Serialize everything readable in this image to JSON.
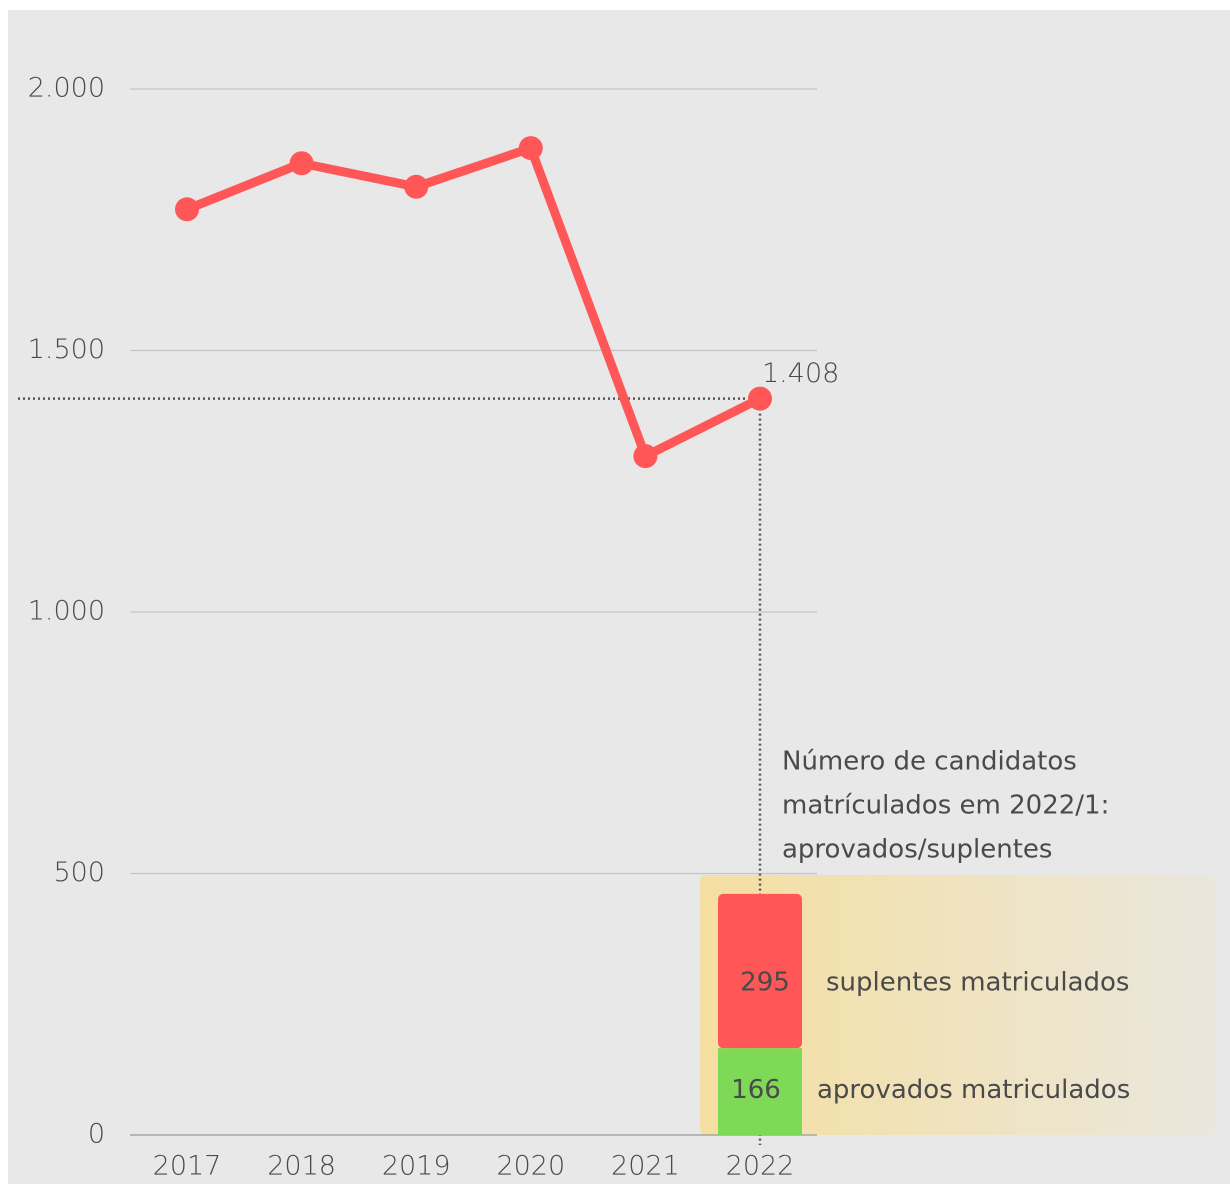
{
  "chart_data": [
    {
      "type": "line",
      "categories": [
        "2017",
        "2018",
        "2019",
        "2020",
        "2021",
        "2022"
      ],
      "values": [
        1770,
        1858,
        1813,
        1887,
        1298,
        1408
      ],
      "value_labels": [
        null,
        null,
        null,
        null,
        null,
        "1.408"
      ],
      "color": "#ff5757",
      "ylim": [
        0,
        2000
      ],
      "yticks": [
        {
          "value": 0,
          "label": "0"
        },
        {
          "value": 500,
          "label": "500"
        },
        {
          "value": 1000,
          "label": "1.000"
        },
        {
          "value": 1500,
          "label": "1.500"
        },
        {
          "value": 2000,
          "label": "2.000"
        }
      ],
      "grid": true
    },
    {
      "type": "stacked_bar",
      "annotation": [
        "Número de candidatos",
        "matrículados em 2022/1:",
        "aprovados/suplentes"
      ],
      "series": [
        {
          "name": "aprovados matriculados",
          "color": "#7ed957",
          "values": [
            166
          ]
        },
        {
          "name": "suplentes matriculados",
          "color": "#ff5757",
          "values": [
            295
          ]
        }
      ]
    }
  ]
}
